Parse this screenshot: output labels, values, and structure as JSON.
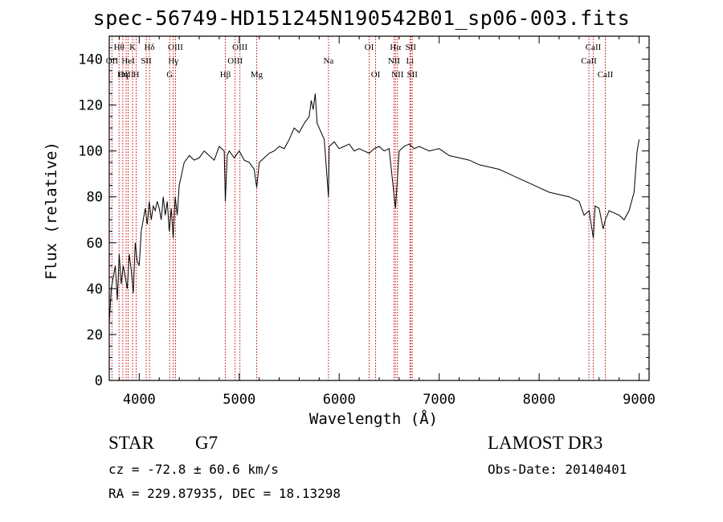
{
  "chart_data": {
    "type": "line",
    "title": "spec-56749-HD151245N190542B01_sp06-003.fits",
    "xlabel": "Wavelength (Å)",
    "ylabel": "Flux (relative)",
    "xlim": [
      3700,
      9100
    ],
    "ylim": [
      0,
      150
    ],
    "x_ticks": [
      4000,
      5000,
      6000,
      7000,
      8000,
      9000
    ],
    "x_tick_labels": [
      "4000",
      "5000",
      "6000",
      "7000",
      "8000",
      "9000"
    ],
    "y_ticks": [
      0,
      20,
      40,
      60,
      80,
      100,
      120,
      140
    ],
    "y_tick_labels": [
      "0",
      "20",
      "40",
      "60",
      "80",
      "100",
      "120",
      "140"
    ],
    "grid": false,
    "series": [
      {
        "x": [
          3700,
          3720,
          3740,
          3760,
          3780,
          3800,
          3820,
          3840,
          3860,
          3880,
          3900,
          3920,
          3940,
          3960,
          3980,
          4000,
          4020,
          4040,
          4060,
          4080,
          4100,
          4120,
          4140,
          4160,
          4180,
          4200,
          4220,
          4240,
          4260,
          4280,
          4300,
          4320,
          4340,
          4360,
          4380,
          4400,
          4450,
          4500,
          4550,
          4600,
          4650,
          4700,
          4750,
          4800,
          4850,
          4861,
          4880,
          4900,
          4950,
          5000,
          5050,
          5100,
          5150,
          5175,
          5200,
          5250,
          5300,
          5350,
          5400,
          5450,
          5500,
          5550,
          5600,
          5650,
          5700,
          5720,
          5740,
          5760,
          5780,
          5800,
          5850,
          5893,
          5900,
          5950,
          6000,
          6050,
          6100,
          6150,
          6200,
          6250,
          6300,
          6350,
          6400,
          6450,
          6500,
          6563,
          6600,
          6650,
          6700,
          6750,
          6800,
          6900,
          7000,
          7100,
          7200,
          7300,
          7400,
          7500,
          7600,
          7700,
          7800,
          7900,
          8000,
          8100,
          8200,
          8300,
          8400,
          8450,
          8500,
          8542,
          8560,
          8600,
          8640,
          8662,
          8700,
          8750,
          8800,
          8850,
          8900,
          8950,
          8980,
          9000
        ],
        "values": [
          25,
          40,
          45,
          50,
          35,
          55,
          42,
          50,
          45,
          40,
          55,
          48,
          38,
          60,
          52,
          50,
          65,
          70,
          75,
          68,
          78,
          70,
          76,
          74,
          78,
          75,
          70,
          80,
          72,
          78,
          65,
          75,
          62,
          80,
          72,
          85,
          95,
          98,
          96,
          97,
          100,
          98,
          96,
          102,
          100,
          78,
          98,
          100,
          97,
          100,
          96,
          95,
          92,
          84,
          95,
          97,
          99,
          100,
          102,
          101,
          105,
          110,
          108,
          112,
          115,
          122,
          118,
          125,
          112,
          110,
          105,
          80,
          102,
          104,
          101,
          102,
          103,
          100,
          101,
          100,
          99,
          101,
          102,
          100,
          101,
          75,
          100,
          102,
          103,
          101,
          102,
          100,
          101,
          98,
          97,
          96,
          94,
          93,
          92,
          90,
          88,
          86,
          84,
          82,
          81,
          80,
          78,
          72,
          74,
          62,
          76,
          75,
          66,
          70,
          74,
          73,
          72,
          70,
          74,
          82,
          100,
          105
        ]
      }
    ],
    "spectral_lines": [
      {
        "label": "Hθ",
        "x": 3798,
        "row": 1
      },
      {
        "label": "OII",
        "x": 3727,
        "row": 2
      },
      {
        "label": "OIII",
        "x": 3869,
        "row": 3
      },
      {
        "label": "K",
        "x": 3934,
        "row": 1
      },
      {
        "label": "HeI",
        "x": 3889,
        "row": 2
      },
      {
        "label": "Hη",
        "x": 3835,
        "row": 3
      },
      {
        "label": "Hδ",
        "x": 4102,
        "row": 1
      },
      {
        "label": "SII",
        "x": 4070,
        "row": 2
      },
      {
        "label": "H",
        "x": 3969,
        "row": 3
      },
      {
        "label": "OIII",
        "x": 4363,
        "row": 1
      },
      {
        "label": "Hγ",
        "x": 4341,
        "row": 2
      },
      {
        "label": "G",
        "x": 4305,
        "row": 3
      },
      {
        "label": "OIII",
        "x": 5007,
        "row": 1
      },
      {
        "label": "OIII",
        "x": 4959,
        "row": 2
      },
      {
        "label": "Hβ",
        "x": 4861,
        "row": 3
      },
      {
        "label": "Mg",
        "x": 5175,
        "row": 3
      },
      {
        "label": "Na",
        "x": 5893,
        "row": 2
      },
      {
        "label": "OI",
        "x": 6300,
        "row": 1
      },
      {
        "label": "OI",
        "x": 6364,
        "row": 3
      },
      {
        "label": "Hα",
        "x": 6563,
        "row": 1
      },
      {
        "label": "NII",
        "x": 6548,
        "row": 2
      },
      {
        "label": "NII",
        "x": 6583,
        "row": 3
      },
      {
        "label": "SII",
        "x": 6716,
        "row": 1
      },
      {
        "label": "Li",
        "x": 6708,
        "row": 2
      },
      {
        "label": "SII",
        "x": 6731,
        "row": 3
      },
      {
        "label": "CaII",
        "x": 8542,
        "row": 1
      },
      {
        "label": "CaII",
        "x": 8498,
        "row": 2
      },
      {
        "label": "CaII",
        "x": 8662,
        "row": 3
      }
    ]
  },
  "info": {
    "object_class": "STAR",
    "subclass": "G7",
    "survey": "LAMOST DR3",
    "velocity": "cz = -72.8 ± 60.6 km/s",
    "obs_date": "Obs-Date: 20140401",
    "coordinates": "RA = 229.87935, DEC =  18.13298"
  },
  "colors": {
    "spectrum": "#000000",
    "line_markers": "#cc0000",
    "axes": "#000000"
  }
}
